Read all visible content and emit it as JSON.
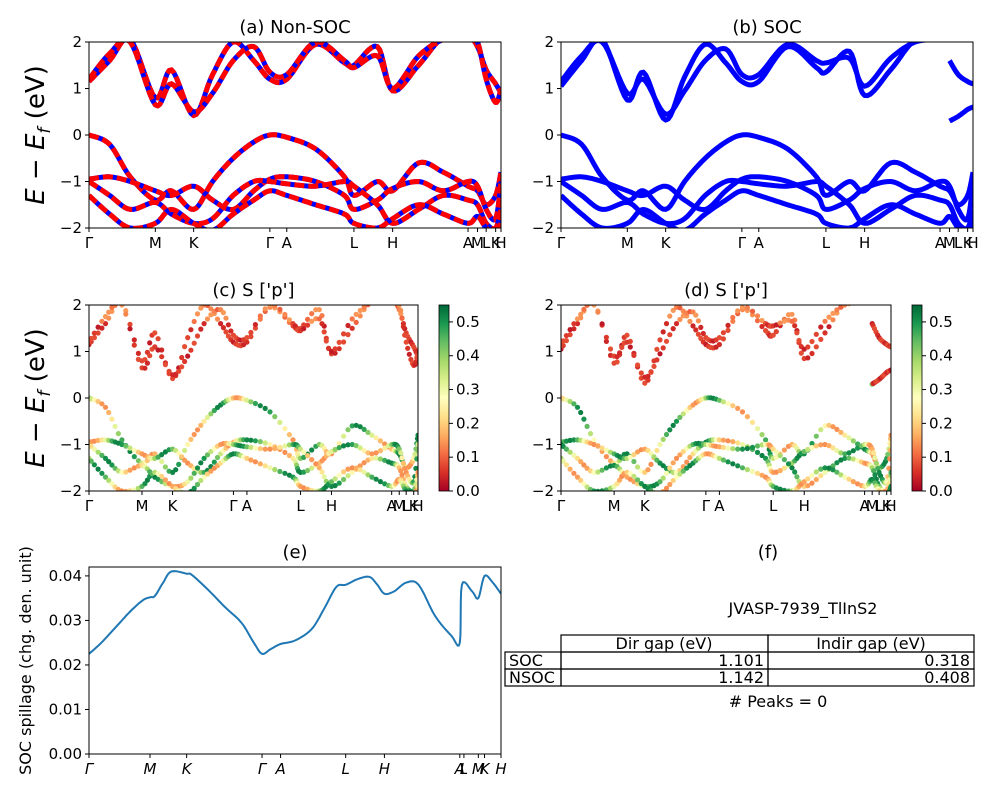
{
  "figure": {
    "ylabel_main": "E − E_f (eV)"
  },
  "colors": {
    "red": "#ff0000",
    "blue": "#0000ff",
    "line_e": "#1f77b4"
  },
  "colorbar_ticks": [
    "0.0",
    "0.1",
    "0.2",
    "0.3",
    "0.4",
    "0.5"
  ],
  "chart_data": [
    {
      "id": "a",
      "type": "line",
      "title": "(a) Non-SOC",
      "ylabel": "E − E_f (eV)",
      "ylim": [
        -2,
        2
      ],
      "yticks": [
        "−2",
        "−1",
        "0",
        "1",
        "2"
      ],
      "xticks": [
        "Γ",
        "M",
        "K",
        "Γ",
        "A",
        "L",
        "H",
        "A",
        "M",
        "L",
        "K",
        "H"
      ],
      "xtick_pos": [
        0,
        0.161,
        0.254,
        0.439,
        0.48,
        0.643,
        0.737,
        0.92,
        0.943,
        0.964,
        0.987,
        1.0
      ],
      "series": [
        {
          "values_note": "",
          "x": [
            0,
            0.05,
            0.1,
            0.161,
            0.2,
            0.254,
            0.3,
            0.35,
            0.4,
            0.439,
            0.48,
            0.55,
            0.62,
            0.643,
            0.7,
            0.737,
            0.8,
            0.86,
            0.92,
            0.943,
            0.964,
            0.987,
            1.0
          ],
          "y": [
            1.15,
            1.6,
            2.05,
            0.8,
            1.4,
            0.42,
            1.3,
            2.0,
            1.6,
            1.2,
            1.2,
            1.95,
            1.55,
            1.5,
            1.9,
            0.95,
            1.5,
            2.1,
            2.1,
            1.9,
            1.4,
            1.1,
            0.9
          ]
        },
        {
          "x": [
            0,
            0.05,
            0.1,
            0.161,
            0.2,
            0.254,
            0.3,
            0.35,
            0.4,
            0.439,
            0.48,
            0.55,
            0.62,
            0.643,
            0.7,
            0.737,
            0.8,
            0.86,
            0.92,
            0.943,
            0.964,
            0.987,
            1.0
          ],
          "y": [
            1.2,
            1.75,
            2.0,
            0.65,
            1.1,
            0.5,
            0.9,
            1.6,
            1.9,
            1.35,
            1.3,
            2.0,
            1.6,
            1.45,
            1.7,
            1.0,
            1.7,
            2.05,
            2.05,
            2.0,
            1.2,
            0.7,
            1.0
          ]
        },
        {
          "x": [
            0,
            0.05,
            0.1,
            0.161,
            0.2,
            0.254,
            0.3,
            0.35,
            0.4,
            0.439,
            0.48,
            0.55,
            0.62,
            0.643,
            0.7,
            0.737,
            0.8,
            0.86,
            0.92,
            0.943,
            0.964,
            0.987,
            1.0
          ],
          "y": [
            0.0,
            -0.2,
            -0.9,
            -1.4,
            -1.2,
            -1.6,
            -1.0,
            -0.5,
            -0.15,
            0.0,
            -0.05,
            -0.3,
            -0.9,
            -1.3,
            -1.0,
            -1.2,
            -0.6,
            -0.8,
            -1.1,
            -1.2,
            -1.5,
            -1.3,
            -0.8
          ]
        },
        {
          "x": [
            0,
            0.05,
            0.1,
            0.161,
            0.2,
            0.254,
            0.3,
            0.35,
            0.4,
            0.439,
            0.48,
            0.55,
            0.62,
            0.643,
            0.7,
            0.737,
            0.8,
            0.86,
            0.92,
            0.943,
            0.964,
            0.987,
            1.0
          ],
          "y": [
            -0.95,
            -0.9,
            -1.0,
            -1.2,
            -1.3,
            -1.1,
            -1.4,
            -1.6,
            -1.2,
            -0.95,
            -0.9,
            -1.0,
            -1.3,
            -1.6,
            -1.4,
            -1.15,
            -1.0,
            -1.2,
            -1.0,
            -1.1,
            -1.6,
            -1.8,
            -1.0
          ]
        },
        {
          "x": [
            0,
            0.05,
            0.1,
            0.161,
            0.2,
            0.254,
            0.3,
            0.35,
            0.4,
            0.439,
            0.48,
            0.55,
            0.62,
            0.643,
            0.7,
            0.737,
            0.8,
            0.86,
            0.92,
            0.943,
            0.964,
            0.987,
            1.0
          ],
          "y": [
            -1.0,
            -1.3,
            -1.6,
            -1.45,
            -1.7,
            -1.9,
            -1.8,
            -1.3,
            -1.0,
            -1.0,
            -1.05,
            -1.1,
            -1.0,
            -1.1,
            -1.5,
            -1.9,
            -1.6,
            -1.3,
            -1.4,
            -1.5,
            -1.9,
            -2.0,
            -1.6
          ]
        },
        {
          "x": [
            0,
            0.05,
            0.1,
            0.161,
            0.2,
            0.254,
            0.3,
            0.35,
            0.4,
            0.439,
            0.48,
            0.55,
            0.62,
            0.643,
            0.7,
            0.737,
            0.8,
            0.86,
            0.92,
            0.943,
            0.964,
            0.987,
            1.0
          ],
          "y": [
            -1.3,
            -1.7,
            -2.0,
            -1.9,
            -1.6,
            -1.9,
            -2.05,
            -1.7,
            -1.4,
            -1.2,
            -1.3,
            -1.5,
            -1.7,
            -1.9,
            -2.0,
            -1.8,
            -1.5,
            -1.7,
            -1.9,
            -1.75,
            -2.0,
            -2.1,
            -1.9
          ]
        }
      ]
    },
    {
      "id": "b",
      "type": "line",
      "title": "(b) SOC",
      "ylim": [
        -2,
        2
      ],
      "yticks": [
        "−2",
        "−1",
        "0",
        "1",
        "2"
      ],
      "xticks": [
        "Γ",
        "M",
        "K",
        "Γ",
        "A",
        "L",
        "H",
        "A",
        "M",
        "L",
        "K",
        "H"
      ],
      "xtick_pos": [
        0,
        0.161,
        0.254,
        0.439,
        0.48,
        0.643,
        0.737,
        0.92,
        0.943,
        0.964,
        0.987,
        1.0
      ],
      "series": [
        {
          "x": [
            0,
            0.05,
            0.1,
            0.161,
            0.2,
            0.254,
            0.3,
            0.35,
            0.4,
            0.439,
            0.48,
            0.55,
            0.62,
            0.643,
            0.7,
            0.737,
            0.8,
            0.86,
            0.92
          ],
          "y": [
            1.05,
            1.6,
            2.05,
            0.75,
            1.35,
            0.32,
            1.25,
            1.95,
            1.55,
            1.15,
            1.15,
            1.9,
            1.45,
            1.35,
            1.8,
            0.85,
            1.4,
            2.05,
            2.1
          ]
        },
        {
          "x": [
            0,
            0.05,
            0.1,
            0.161,
            0.2,
            0.254,
            0.3,
            0.35,
            0.4,
            0.439,
            0.48,
            0.55,
            0.62,
            0.643,
            0.7,
            0.737,
            0.8,
            0.86,
            0.92
          ],
          "y": [
            1.15,
            1.7,
            2.0,
            0.9,
            1.2,
            0.45,
            0.95,
            1.6,
            1.85,
            1.3,
            1.3,
            1.95,
            1.6,
            1.55,
            1.65,
            1.05,
            1.65,
            2.0,
            2.05
          ]
        },
        {
          "x": [
            0.943,
            0.964,
            0.987,
            1.0
          ],
          "y": [
            0.3,
            0.4,
            0.55,
            0.6
          ]
        },
        {
          "x": [
            0.943,
            0.964,
            0.987,
            1.0
          ],
          "y": [
            1.6,
            1.3,
            1.15,
            1.1
          ]
        },
        {
          "x": [
            0,
            0.05,
            0.1,
            0.161,
            0.2,
            0.254,
            0.3,
            0.35,
            0.4,
            0.439,
            0.48,
            0.55,
            0.62,
            0.643,
            0.7,
            0.737,
            0.8,
            0.86,
            0.92,
            0.943,
            0.964,
            0.987,
            1.0
          ],
          "y": [
            0.0,
            -0.2,
            -0.9,
            -1.4,
            -1.2,
            -1.6,
            -1.0,
            -0.5,
            -0.15,
            0.0,
            -0.05,
            -0.3,
            -0.9,
            -1.3,
            -1.0,
            -1.2,
            -0.6,
            -0.8,
            -1.1,
            -1.2,
            -1.5,
            -1.3,
            -0.8
          ]
        },
        {
          "x": [
            0,
            0.05,
            0.1,
            0.161,
            0.2,
            0.254,
            0.3,
            0.35,
            0.4,
            0.439,
            0.48,
            0.55,
            0.62,
            0.643,
            0.7,
            0.737,
            0.8,
            0.86,
            0.92,
            0.943,
            0.964,
            0.987,
            1.0
          ],
          "y": [
            -0.95,
            -0.9,
            -1.0,
            -1.2,
            -1.3,
            -1.1,
            -1.4,
            -1.6,
            -1.2,
            -0.95,
            -0.9,
            -1.0,
            -1.3,
            -1.6,
            -1.4,
            -1.15,
            -1.0,
            -1.2,
            -1.0,
            -1.1,
            -1.6,
            -1.8,
            -1.0
          ]
        },
        {
          "x": [
            0,
            0.05,
            0.1,
            0.161,
            0.2,
            0.254,
            0.3,
            0.35,
            0.4,
            0.439,
            0.48,
            0.55,
            0.62,
            0.643,
            0.7,
            0.737,
            0.8,
            0.86,
            0.92,
            0.943,
            0.964,
            0.987,
            1.0
          ],
          "y": [
            -1.0,
            -1.3,
            -1.6,
            -1.45,
            -1.7,
            -1.9,
            -1.8,
            -1.3,
            -1.0,
            -1.0,
            -1.05,
            -1.1,
            -1.0,
            -1.1,
            -1.5,
            -1.9,
            -1.6,
            -1.3,
            -1.4,
            -1.5,
            -1.9,
            -2.0,
            -1.6
          ]
        },
        {
          "x": [
            0,
            0.05,
            0.1,
            0.161,
            0.2,
            0.254,
            0.3,
            0.35,
            0.4,
            0.439,
            0.48,
            0.55,
            0.62,
            0.643,
            0.7,
            0.737,
            0.8,
            0.86,
            0.92,
            0.943,
            0.964,
            0.987,
            1.0
          ],
          "y": [
            -1.3,
            -1.7,
            -2.0,
            -1.9,
            -1.6,
            -1.9,
            -2.05,
            -1.7,
            -1.4,
            -1.2,
            -1.3,
            -1.5,
            -1.7,
            -1.9,
            -2.0,
            -1.8,
            -1.5,
            -1.7,
            -1.9,
            -1.75,
            -2.0,
            -2.1,
            -1.9
          ]
        }
      ]
    },
    {
      "id": "c",
      "type": "scatter",
      "title": "(c)  S ['p']",
      "ylabel": "E − E_f (eV)",
      "ylim": [
        -2,
        2
      ],
      "yticks": [
        "−2",
        "−1",
        "0",
        "1",
        "2"
      ],
      "xticks": [
        "Γ",
        "M",
        "K",
        "Γ",
        "A",
        "L",
        "H",
        "A",
        "M",
        "L",
        "K",
        "H"
      ],
      "xtick_pos": [
        0,
        0.161,
        0.254,
        0.439,
        0.48,
        0.643,
        0.737,
        0.92,
        0.943,
        0.964,
        0.987,
        1.0
      ],
      "colorbar": {
        "min": 0.0,
        "max": 0.55,
        "colormap": "RdYlGn"
      }
    },
    {
      "id": "d",
      "type": "scatter",
      "title": "(d) S ['p']",
      "ylim": [
        -2,
        2
      ],
      "yticks": [
        "−2",
        "−1",
        "0",
        "1",
        "2"
      ],
      "xticks": [
        "Γ",
        "M",
        "K",
        "Γ",
        "A",
        "L",
        "H",
        "A",
        "M",
        "L",
        "K",
        "H"
      ],
      "xtick_pos": [
        0,
        0.161,
        0.254,
        0.439,
        0.48,
        0.643,
        0.737,
        0.92,
        0.943,
        0.964,
        0.987,
        1.0
      ],
      "colorbar": {
        "min": 0.0,
        "max": 0.55,
        "colormap": "RdYlGn"
      }
    },
    {
      "id": "e",
      "type": "line",
      "title": "(e)",
      "ylabel": "SOC spillage (chg. den. unit)",
      "ylim": [
        0.0,
        0.042
      ],
      "yticks": [
        "0.00",
        "0.01",
        "0.02",
        "0.03",
        "0.04"
      ],
      "ytick_vals": [
        0.0,
        0.01,
        0.02,
        0.03,
        0.04
      ],
      "xticks": [
        "Γ",
        "M",
        "K",
        "Γ",
        "A",
        "L",
        "H",
        "A",
        "L",
        "M",
        "K",
        "H"
      ],
      "xtick_pos": [
        0,
        0.148,
        0.237,
        0.42,
        0.465,
        0.623,
        0.717,
        0.9,
        0.91,
        0.945,
        0.96,
        1.0
      ],
      "x": [
        0,
        0.03,
        0.07,
        0.1,
        0.13,
        0.148,
        0.16,
        0.18,
        0.2,
        0.237,
        0.25,
        0.29,
        0.33,
        0.37,
        0.4,
        0.42,
        0.44,
        0.465,
        0.5,
        0.54,
        0.57,
        0.6,
        0.623,
        0.65,
        0.68,
        0.7,
        0.717,
        0.74,
        0.77,
        0.8,
        0.84,
        0.88,
        0.9,
        0.905,
        0.93,
        0.945,
        0.96,
        0.98,
        1.0
      ],
      "y": [
        0.0225,
        0.025,
        0.029,
        0.032,
        0.0345,
        0.0352,
        0.0355,
        0.0385,
        0.041,
        0.0405,
        0.0402,
        0.0368,
        0.033,
        0.0295,
        0.025,
        0.0225,
        0.0235,
        0.0247,
        0.0255,
        0.028,
        0.0325,
        0.0375,
        0.038,
        0.0392,
        0.0398,
        0.038,
        0.036,
        0.0365,
        0.0385,
        0.038,
        0.031,
        0.0265,
        0.025,
        0.038,
        0.0365,
        0.035,
        0.04,
        0.0385,
        0.036
      ]
    }
  ],
  "panel_f": {
    "title": "(f)",
    "subtitle": "JVASP-7939_TlInS2",
    "table": {
      "headers": [
        "Dir gap (eV)",
        "Indir gap (eV)"
      ],
      "rows": [
        {
          "label": "SOC",
          "dir": "1.101",
          "indir": "0.318"
        },
        {
          "label": "NSOC",
          "dir": "1.142",
          "indir": "0.408"
        }
      ]
    },
    "peaks": "# Peaks = 0"
  }
}
